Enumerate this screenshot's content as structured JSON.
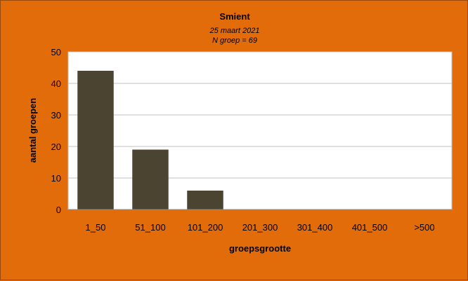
{
  "chart_data": {
    "type": "bar",
    "title": "Smient",
    "subtitle_lines": [
      "25 maart 2021",
      "N groep = 69"
    ],
    "xlabel": "groepsgrootte",
    "ylabel": "aantal groepen",
    "categories": [
      "1_50",
      "51_100",
      "101_200",
      "201_300",
      "301_400",
      "401_500",
      ">500"
    ],
    "values": [
      44,
      19,
      6,
      0,
      0,
      0,
      0
    ],
    "ylim": [
      0,
      50
    ],
    "yticks": [
      0,
      10,
      20,
      30,
      40,
      50
    ],
    "grid": true,
    "legend": "none",
    "bar_color": "#4a4430",
    "background_color": "#e36c0a",
    "plot_background_color": "#ffffff"
  }
}
